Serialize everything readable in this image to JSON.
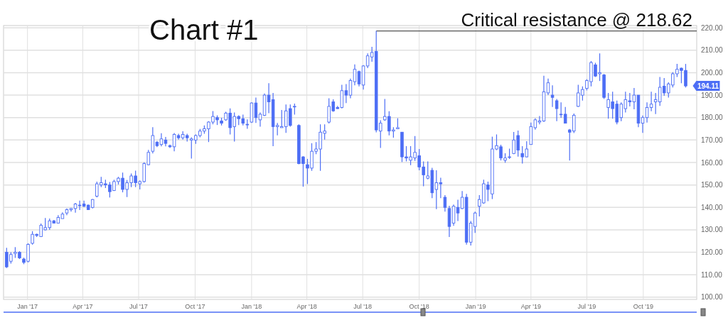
{
  "chart_data": {
    "type": "candlestick",
    "title": "Chart #1",
    "color": "#4d6ef5",
    "grid": true,
    "x": [
      "2016-11-28",
      "2016-12-05",
      "2016-12-12",
      "2016-12-19",
      "2016-12-26",
      "2017-01-02",
      "2017-01-09",
      "2017-01-16",
      "2017-01-23",
      "2017-01-30",
      "2017-02-06",
      "2017-02-13",
      "2017-02-20",
      "2017-02-27",
      "2017-03-06",
      "2017-03-13",
      "2017-03-20",
      "2017-03-27",
      "2017-04-03",
      "2017-04-10",
      "2017-04-17",
      "2017-04-24",
      "2017-05-01",
      "2017-05-08",
      "2017-05-15",
      "2017-05-22",
      "2017-05-29",
      "2017-06-05",
      "2017-06-12",
      "2017-06-19",
      "2017-06-26",
      "2017-07-03",
      "2017-07-10",
      "2017-07-17",
      "2017-07-24",
      "2017-07-31",
      "2017-08-07",
      "2017-08-14",
      "2017-08-21",
      "2017-08-28",
      "2017-09-04",
      "2017-09-11",
      "2017-09-18",
      "2017-09-25",
      "2017-10-02",
      "2017-10-09",
      "2017-10-16",
      "2017-10-23",
      "2017-10-30",
      "2017-11-06",
      "2017-11-13",
      "2017-11-20",
      "2017-11-27",
      "2017-12-04",
      "2017-12-11",
      "2017-12-18",
      "2017-12-25",
      "2018-01-01",
      "2018-01-08",
      "2018-01-15",
      "2018-01-22",
      "2018-01-29",
      "2018-02-05",
      "2018-02-12",
      "2018-02-19",
      "2018-02-26",
      "2018-03-05",
      "2018-03-12",
      "2018-03-19",
      "2018-03-26",
      "2018-04-02",
      "2018-04-09",
      "2018-04-16",
      "2018-04-23",
      "2018-04-30",
      "2018-05-07",
      "2018-05-14",
      "2018-05-21",
      "2018-05-28",
      "2018-06-04",
      "2018-06-11",
      "2018-06-18",
      "2018-06-25",
      "2018-07-02",
      "2018-07-09",
      "2018-07-16",
      "2018-07-23",
      "2018-07-30",
      "2018-08-06",
      "2018-08-13",
      "2018-08-20",
      "2018-08-27",
      "2018-09-03",
      "2018-09-10",
      "2018-09-17",
      "2018-09-24",
      "2018-10-01",
      "2018-10-08",
      "2018-10-15",
      "2018-10-22",
      "2018-10-29",
      "2018-11-05",
      "2018-11-12",
      "2018-11-19",
      "2018-11-26",
      "2018-12-03",
      "2018-12-10",
      "2018-12-17",
      "2018-12-24",
      "2018-12-31",
      "2019-01-07",
      "2019-01-14",
      "2019-01-21",
      "2019-01-28",
      "2019-02-04",
      "2019-02-11",
      "2019-02-18",
      "2019-02-25",
      "2019-03-04",
      "2019-03-11",
      "2019-03-18",
      "2019-03-25",
      "2019-04-01",
      "2019-04-08",
      "2019-04-15",
      "2019-04-22",
      "2019-04-29",
      "2019-05-06",
      "2019-05-13",
      "2019-05-20",
      "2019-05-27",
      "2019-06-03",
      "2019-06-10",
      "2019-06-17",
      "2019-06-24",
      "2019-07-01",
      "2019-07-08",
      "2019-07-15",
      "2019-07-22",
      "2019-07-29",
      "2019-08-05",
      "2019-08-12",
      "2019-08-19",
      "2019-08-26",
      "2019-09-02",
      "2019-09-09",
      "2019-09-16",
      "2019-09-23",
      "2019-09-30",
      "2019-10-07",
      "2019-10-14",
      "2019-10-21",
      "2019-10-28",
      "2019-11-04",
      "2019-11-11",
      "2019-11-18",
      "2019-11-25",
      "2019-12-02",
      "2019-12-09"
    ],
    "ohlc": [
      [
        120,
        122,
        113,
        113.5
      ],
      [
        116,
        120,
        115,
        119
      ],
      [
        119.5,
        122.3,
        117.5,
        120
      ],
      [
        120,
        120.5,
        117,
        117.5
      ],
      [
        117,
        117.6,
        114.7,
        115.5
      ],
      [
        116,
        124,
        115.5,
        123.5
      ],
      [
        124,
        129.4,
        123.4,
        128
      ],
      [
        128,
        128.3,
        126.8,
        127.5
      ],
      [
        127,
        132.8,
        126.8,
        132
      ],
      [
        130,
        135.3,
        129.7,
        131
      ],
      [
        131,
        135,
        130,
        134
      ],
      [
        134,
        134.4,
        132.8,
        133
      ],
      [
        133,
        136.5,
        132.8,
        135.5
      ],
      [
        135,
        137.8,
        135,
        137
      ],
      [
        137.5,
        139.5,
        136.5,
        139
      ],
      [
        139,
        139.7,
        138.1,
        139.5
      ],
      [
        139.5,
        142,
        137.6,
        141.5
      ],
      [
        141,
        143,
        138.8,
        141
      ],
      [
        141.5,
        143,
        140.2,
        140.5
      ],
      [
        141,
        141.3,
        138.8,
        139
      ],
      [
        140,
        143.7,
        139.5,
        143.5
      ],
      [
        145,
        151.5,
        144.4,
        150.5
      ],
      [
        150,
        153.6,
        149,
        151
      ],
      [
        150.5,
        152.3,
        148.6,
        150
      ],
      [
        150,
        151.3,
        144.4,
        147
      ],
      [
        147.5,
        152.3,
        147.3,
        151.5
      ],
      [
        151.5,
        153.6,
        150.2,
        153
      ],
      [
        153,
        155.5,
        146.7,
        148
      ],
      [
        148,
        152.2,
        144.6,
        151
      ],
      [
        151,
        155.1,
        149,
        154
      ],
      [
        154,
        156.4,
        149,
        151
      ],
      [
        150.5,
        152,
        148,
        151.5
      ],
      [
        151.5,
        160.1,
        151.1,
        159.5
      ],
      [
        159,
        165.6,
        158.7,
        164.5
      ],
      [
        165,
        175.7,
        164,
        172
      ],
      [
        169,
        169.6,
        166.9,
        167.5
      ],
      [
        168,
        173,
        167.2,
        170.5
      ],
      [
        170,
        171.4,
        167.2,
        168.5
      ],
      [
        167.5,
        168,
        166.5,
        167
      ],
      [
        167,
        173.1,
        165,
        172.5
      ],
      [
        172,
        172.8,
        170.2,
        171
      ],
      [
        171,
        173.9,
        170.2,
        172.5
      ],
      [
        172,
        172.8,
        169.3,
        171
      ],
      [
        170,
        171.2,
        161.7,
        170.5
      ],
      [
        170,
        172.5,
        168.3,
        172
      ],
      [
        172,
        174.9,
        171.2,
        174
      ],
      [
        174,
        176.5,
        172.8,
        175
      ],
      [
        175,
        178.4,
        169.1,
        178
      ],
      [
        178,
        182.9,
        177,
        180.5
      ],
      [
        180,
        181,
        176.7,
        179
      ],
      [
        178.5,
        179.9,
        176.5,
        177.5
      ],
      [
        179,
        182.6,
        178.6,
        182
      ],
      [
        182,
        184.1,
        172.5,
        175.5
      ],
      [
        176,
        182.3,
        169.3,
        180.5
      ],
      [
        180.5,
        181,
        176.7,
        179.5
      ],
      [
        179.5,
        181.3,
        176.5,
        177.5
      ],
      [
        177,
        179.2,
        175,
        177
      ],
      [
        178,
        186.8,
        177.6,
        186.5
      ],
      [
        186.5,
        188.9,
        177.6,
        180
      ],
      [
        179,
        182.3,
        176,
        181.5
      ],
      [
        181,
        190.7,
        180.7,
        190
      ],
      [
        190,
        195.3,
        182,
        187
      ],
      [
        188,
        191,
        167.3,
        176
      ],
      [
        176,
        177.6,
        172.1,
        176.5
      ],
      [
        175.5,
        183.4,
        175.5,
        176
      ],
      [
        176,
        185.8,
        173.2,
        183
      ],
      [
        184,
        185.8,
        176,
        176.5
      ],
      [
        185,
        186.2,
        181.3,
        185
      ],
      [
        176.5,
        177,
        159.2,
        159.5
      ],
      [
        162.5,
        162.8,
        149.2,
        159.5
      ],
      [
        159,
        161.6,
        150.4,
        157.5
      ],
      [
        157.5,
        168.6,
        156.3,
        165
      ],
      [
        165,
        169.1,
        163.7,
        166
      ],
      [
        166,
        177,
        156.3,
        173.5
      ],
      [
        173,
        177,
        170.2,
        174
      ],
      [
        178,
        188.6,
        177.4,
        185
      ],
      [
        187,
        188.1,
        182.6,
        183
      ],
      [
        184.5,
        185.2,
        183.9,
        184
      ],
      [
        184.5,
        194.6,
        184.1,
        192
      ],
      [
        192,
        194.9,
        186.5,
        190
      ],
      [
        190,
        197.4,
        188.6,
        196.5
      ],
      [
        196,
        203.7,
        194.4,
        201.5
      ],
      [
        200.5,
        200.9,
        193.9,
        195
      ],
      [
        194.5,
        203.4,
        192.5,
        203
      ],
      [
        203,
        208.6,
        202,
        207.5
      ],
      [
        207,
        211.5,
        204.9,
        209
      ],
      [
        209.5,
        218.62,
        173.4,
        174.5
      ],
      [
        174,
        178.8,
        166.5,
        177.5
      ],
      [
        179,
        188.3,
        178.6,
        180.5
      ],
      [
        180.5,
        182.8,
        172.1,
        174
      ],
      [
        174,
        175.7,
        171.1,
        174.5
      ],
      [
        175,
        179.7,
        175,
        175.5
      ],
      [
        173.5,
        173.6,
        160.2,
        162.5
      ],
      [
        162.5,
        167.3,
        160.5,
        162
      ],
      [
        161,
        167.3,
        158.8,
        162.5
      ],
      [
        162,
        171.8,
        160.7,
        164.5
      ],
      [
        163,
        166,
        156.5,
        158
      ],
      [
        158,
        160.5,
        149.4,
        154.5
      ],
      [
        153,
        160.5,
        152.5,
        154
      ],
      [
        156.5,
        157.6,
        144.1,
        146.5
      ],
      [
        148,
        156.5,
        139.2,
        151
      ],
      [
        151,
        153.2,
        144.1,
        150.5
      ],
      [
        144.5,
        145.5,
        138.1,
        140
      ],
      [
        139.5,
        140.7,
        126.8,
        131.5
      ],
      [
        133,
        141.3,
        131.8,
        140.5
      ],
      [
        140,
        143.4,
        133.9,
        137.5
      ],
      [
        139.5,
        147.3,
        139.2,
        144.5
      ],
      [
        144.5,
        146,
        123.4,
        124.5
      ],
      [
        124.5,
        133.9,
        123,
        133
      ],
      [
        131.5,
        138.1,
        128.6,
        137.5
      ],
      [
        140.5,
        145.5,
        136,
        143.5
      ],
      [
        142,
        152.3,
        141.6,
        150.5
      ],
      [
        150,
        151.5,
        142.8,
        148
      ],
      [
        146,
        171.5,
        143.7,
        166
      ],
      [
        166,
        172.5,
        165.5,
        167.5
      ],
      [
        167,
        167.9,
        160.9,
        162
      ],
      [
        161,
        164.1,
        159.9,
        162
      ],
      [
        162.5,
        166.2,
        161.6,
        162.5
      ],
      [
        164,
        173.6,
        163.7,
        170
      ],
      [
        172,
        174.2,
        162.6,
        165.5
      ],
      [
        164,
        167.3,
        159.5,
        162.5
      ],
      [
        162.5,
        169.5,
        162.3,
        166
      ],
      [
        168,
        177.8,
        167.9,
        176
      ],
      [
        175.5,
        179.7,
        174.6,
        179
      ],
      [
        178,
        180.7,
        177,
        178.5
      ],
      [
        178.5,
        198.6,
        178.1,
        191.5
      ],
      [
        191,
        197.4,
        190,
        195.5
      ],
      [
        190,
        194.4,
        184.7,
        189
      ],
      [
        187.5,
        188.3,
        178.4,
        184
      ],
      [
        181.5,
        186.8,
        179.9,
        181.5
      ],
      [
        181.5,
        184.7,
        177.4,
        177.5
      ],
      [
        174.5,
        174.9,
        160.9,
        173.5
      ],
      [
        174,
        181.8,
        173.1,
        181
      ],
      [
        185,
        194.6,
        184.7,
        191
      ],
      [
        190,
        193.9,
        187.6,
        192.5
      ],
      [
        193,
        197.1,
        192.1,
        196.5
      ],
      [
        196,
        205.2,
        193.9,
        204.5
      ],
      [
        203.5,
        204.4,
        198.1,
        198.5
      ],
      [
        199.5,
        208.6,
        196.3,
        200
      ],
      [
        199,
        199.4,
        188.3,
        189
      ],
      [
        184.5,
        191,
        179.5,
        188
      ],
      [
        187,
        191.5,
        179.5,
        184
      ],
      [
        186,
        187.6,
        177,
        178
      ],
      [
        180,
        186.8,
        178.4,
        186
      ],
      [
        184,
        191.5,
        182.3,
        188
      ],
      [
        187.5,
        191,
        185,
        187
      ],
      [
        187,
        193.2,
        183.7,
        190
      ],
      [
        190,
        190,
        175.7,
        177.5
      ],
      [
        177.5,
        180.9,
        173.2,
        180
      ],
      [
        180,
        186.8,
        177.8,
        184.5
      ],
      [
        184.5,
        191.5,
        182.8,
        186
      ],
      [
        187,
        191,
        181.6,
        188
      ],
      [
        187,
        198.1,
        185.2,
        193.5
      ],
      [
        194,
        197.6,
        189.7,
        191
      ],
      [
        191,
        195.7,
        188.9,
        195
      ],
      [
        194.5,
        200.2,
        193.4,
        199.5
      ],
      [
        199.5,
        203.9,
        198.1,
        201.5
      ],
      [
        202,
        202.3,
        195.3,
        201
      ],
      [
        201,
        203.9,
        193.4,
        194.11
      ]
    ],
    "xlim": [
      "2016-11-23",
      "2019-12-27"
    ],
    "xticks": [
      {
        "value": "2017-01-01",
        "label": "Jan '17"
      },
      {
        "value": "2017-04-01",
        "label": "Apr '17"
      },
      {
        "value": "2017-07-01",
        "label": "Jul '17"
      },
      {
        "value": "2017-10-01",
        "label": "Oct '17"
      },
      {
        "value": "2018-01-01",
        "label": "Jan '18"
      },
      {
        "value": "2018-04-01",
        "label": "Apr '18"
      },
      {
        "value": "2018-07-01",
        "label": "Jul '18"
      },
      {
        "value": "2018-10-01",
        "label": "Oct '18"
      },
      {
        "value": "2019-01-01",
        "label": "Jan '19"
      },
      {
        "value": "2019-04-01",
        "label": "Apr '19"
      },
      {
        "value": "2019-07-01",
        "label": "Jul '19"
      },
      {
        "value": "2019-10-01",
        "label": "Oct '19"
      }
    ],
    "ylim": [
      99,
      221
    ],
    "yticks": [
      {
        "value": 100,
        "label": "100.00"
      },
      {
        "value": 110,
        "label": "110.00"
      },
      {
        "value": 120,
        "label": "120.00"
      },
      {
        "value": 130,
        "label": "130.00"
      },
      {
        "value": 140,
        "label": "140.00"
      },
      {
        "value": 150,
        "label": "150.00"
      },
      {
        "value": 160,
        "label": "160.00"
      },
      {
        "value": 170,
        "label": "170.00"
      },
      {
        "value": 180,
        "label": "180.00"
      },
      {
        "value": 190,
        "label": "190.00"
      },
      {
        "value": 200,
        "label": "200.00"
      },
      {
        "value": 210,
        "label": "210.00"
      },
      {
        "value": 220,
        "label": "220.00"
      }
    ],
    "ref_lines": [
      {
        "axis": "y",
        "value": 218.62,
        "label": "Critical resistance @ 218.62",
        "color": "#555555"
      }
    ],
    "annotations": [
      {
        "text": "194.11",
        "x": "2019-12-09",
        "y": 194.11
      }
    ]
  }
}
